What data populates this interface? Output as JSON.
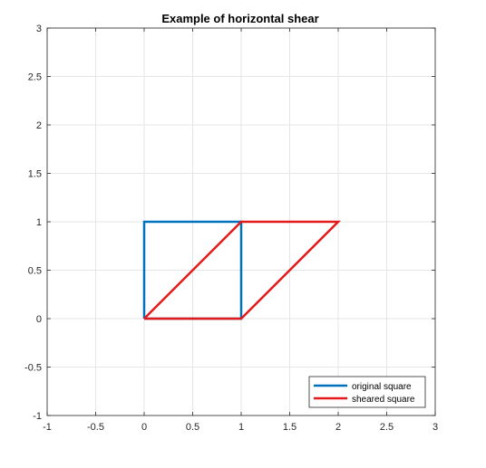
{
  "chart_data": {
    "type": "line",
    "title": "Example of horizontal shear",
    "xlabel": "",
    "ylabel": "",
    "xlim": [
      -1,
      3
    ],
    "ylim": [
      -1,
      3
    ],
    "xticks": [
      -1,
      -0.5,
      0,
      0.5,
      1,
      1.5,
      2,
      2.5,
      3
    ],
    "yticks": [
      -1,
      -0.5,
      0,
      0.5,
      1,
      1.5,
      2,
      2.5,
      3
    ],
    "xtick_labels": [
      "-1",
      "-0.5",
      "0",
      "0.5",
      "1",
      "1.5",
      "2",
      "2.5",
      "3"
    ],
    "ytick_labels": [
      "-1",
      "-0.5",
      "0",
      "0.5",
      "1",
      "1.5",
      "2",
      "2.5",
      "3"
    ],
    "grid": true,
    "legend_position": "bottom-right",
    "series": [
      {
        "name": "original square",
        "color": "#0072bd",
        "x": [
          0,
          1,
          1,
          0,
          0
        ],
        "y": [
          0,
          0,
          1,
          1,
          0
        ]
      },
      {
        "name": "sheared square",
        "color": "#e31a1c",
        "x": [
          0,
          1,
          2,
          1,
          0
        ],
        "y": [
          0,
          0,
          1,
          1,
          0
        ]
      }
    ]
  }
}
